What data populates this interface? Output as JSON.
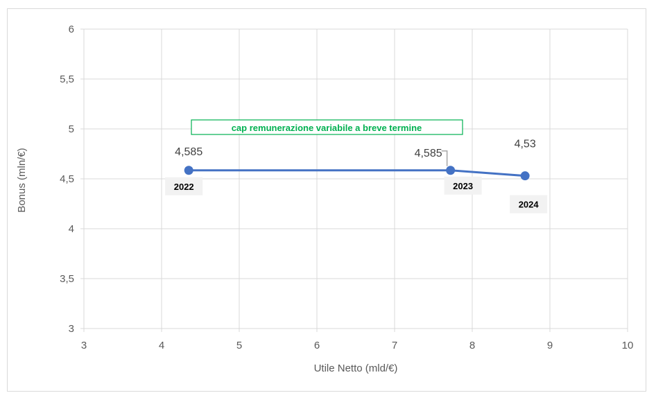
{
  "chart_data": {
    "type": "scatter",
    "xlabel": "Utile Netto (mld/€)",
    "ylabel": "Bonus (mln/€)",
    "xlim": [
      3,
      10
    ],
    "ylim": [
      3,
      6
    ],
    "x_ticks": [
      "3",
      "4",
      "5",
      "6",
      "7",
      "8",
      "9",
      "10"
    ],
    "y_ticks": [
      "3",
      "3,5",
      "4",
      "4,5",
      "5",
      "5,5",
      "6"
    ],
    "grid": true,
    "line_color": "#4472c4",
    "points": [
      {
        "x": 4.35,
        "y": 4.585,
        "value_label": "4,585",
        "year": "2022"
      },
      {
        "x": 7.72,
        "y": 4.585,
        "value_label": "4,585",
        "year": "2023"
      },
      {
        "x": 8.68,
        "y": 4.53,
        "value_label": "4,53",
        "year": "2024"
      }
    ],
    "annotation": "cap remunerazione variabile a breve termine"
  }
}
